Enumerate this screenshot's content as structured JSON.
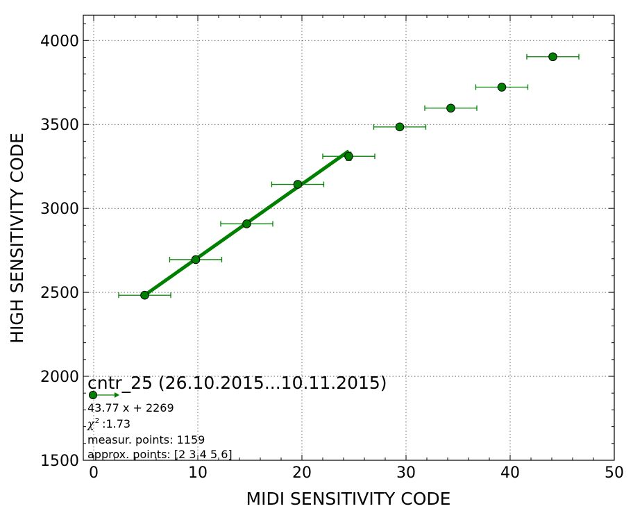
{
  "chart_data": {
    "type": "scatter",
    "xlabel": "MIDI SENSITIVITY CODE",
    "ylabel": "HIGH SENSITIVITY CODE",
    "xlim": [
      -1,
      50
    ],
    "ylim": [
      1500,
      4150
    ],
    "xticks": [
      0,
      10,
      20,
      30,
      40,
      50
    ],
    "yticks": [
      1500,
      2000,
      2500,
      3000,
      3500,
      4000
    ],
    "grid": true,
    "legend_location": "bottom-left",
    "colors": {
      "series": "#008000",
      "marker_edge": "#000000"
    },
    "series": [
      {
        "type": "errorbar",
        "points": [
          {
            "x": 4.9,
            "y": 2483,
            "xerr": 2.5,
            "yerr": 5
          },
          {
            "x": 9.8,
            "y": 2695,
            "xerr": 2.5,
            "yerr": 8
          },
          {
            "x": 14.7,
            "y": 2908,
            "xerr": 2.5,
            "yerr": 8
          },
          {
            "x": 19.6,
            "y": 3143,
            "xerr": 2.5,
            "yerr": 8
          },
          {
            "x": 24.5,
            "y": 3310,
            "xerr": 2.5,
            "yerr": 25
          },
          {
            "x": 29.4,
            "y": 3485,
            "xerr": 2.5,
            "yerr": 12
          },
          {
            "x": 34.3,
            "y": 3597,
            "xerr": 2.5,
            "yerr": 12
          },
          {
            "x": 39.2,
            "y": 3722,
            "xerr": 2.5,
            "yerr": 18
          },
          {
            "x": 44.1,
            "y": 3903,
            "xerr": 2.5,
            "yerr": 8
          }
        ]
      },
      {
        "type": "line",
        "slope": 43.77,
        "intercept": 2269,
        "x_range": [
          4.9,
          24.5
        ]
      }
    ],
    "legend": {
      "title": "cntr_25 (26.10.2015...10.11.2015)",
      "lines": {
        "fit": "43.77 x + 2269",
        "chi_symbol": "χ",
        "chi_sup": "2",
        "chi_value": ":1.73",
        "measured": "measur. points: 1159",
        "approx": "approx. points: [2 3 4 5 6]"
      }
    }
  }
}
